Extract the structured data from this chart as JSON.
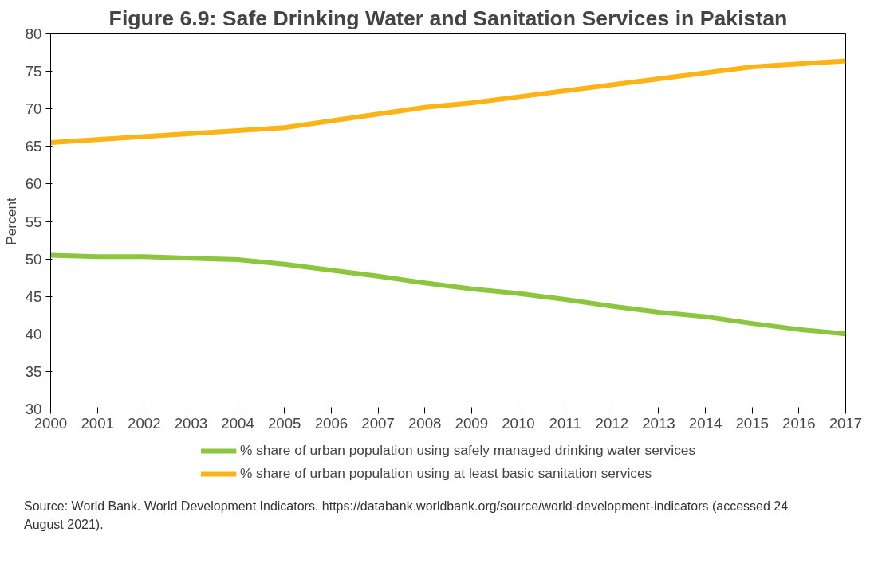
{
  "chart_data": {
    "type": "line",
    "title": "Figure 6.9: Safe Drinking Water and Sanitation Services in Pakistan",
    "ylabel": "Percent",
    "x": [
      2000,
      2001,
      2002,
      2003,
      2004,
      2005,
      2006,
      2007,
      2008,
      2009,
      2010,
      2011,
      2012,
      2013,
      2014,
      2015,
      2016,
      2017
    ],
    "xlim": [
      2000,
      2017
    ],
    "xticks": [
      2000,
      2001,
      2002,
      2003,
      2004,
      2005,
      2006,
      2007,
      2008,
      2009,
      2010,
      2011,
      2012,
      2013,
      2014,
      2015,
      2016,
      2017
    ],
    "ylim": [
      30,
      80
    ],
    "yticks": [
      30,
      35,
      40,
      45,
      50,
      55,
      60,
      65,
      70,
      75,
      80
    ],
    "series": [
      {
        "name": "% share of urban population using safely managed drinking water services",
        "color": "#8cc63f",
        "values": [
          50.5,
          50.3,
          50.3,
          50.1,
          49.9,
          49.3,
          48.5,
          47.7,
          46.8,
          46.0,
          45.4,
          44.6,
          43.7,
          42.9,
          42.3,
          41.4,
          40.6,
          40.0
        ]
      },
      {
        "name": "% share of urban population using at least basic sanitation services",
        "color": "#fbb316",
        "values": [
          65.5,
          65.9,
          66.3,
          66.7,
          67.1,
          67.5,
          68.4,
          69.3,
          70.2,
          70.8,
          71.6,
          72.4,
          73.2,
          74.0,
          74.8,
          75.6,
          76.0,
          76.4
        ]
      }
    ],
    "grid": false,
    "legend": "bottom",
    "marker": "none",
    "line_style": "solid",
    "annotations": [
      "Source: World Bank. World Development Indicators. https://databank.worldbank.org/source/world-development-indicators (accessed 24 August 2021)."
    ]
  }
}
